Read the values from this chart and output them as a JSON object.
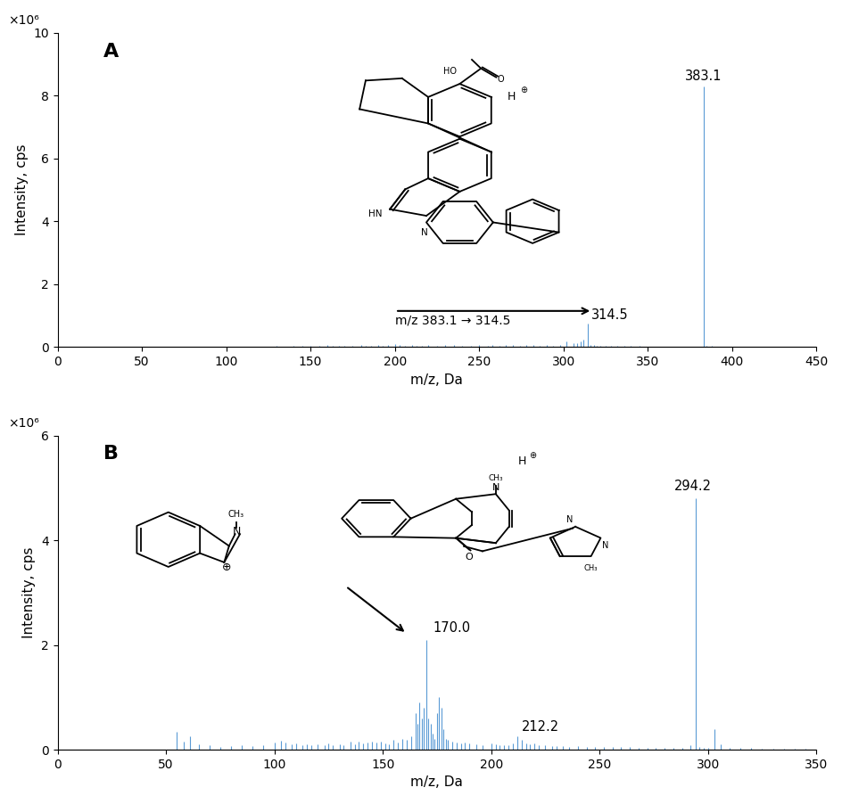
{
  "panel_A": {
    "label": "A",
    "xlim": [
      0,
      450
    ],
    "ylim": [
      0,
      10
    ],
    "yticks": [
      0,
      2,
      4,
      6,
      8,
      10
    ],
    "xticks": [
      0,
      50,
      100,
      150,
      200,
      250,
      300,
      350,
      400,
      450
    ],
    "ylabel": "Intensity, cps",
    "xlabel": "m/z, Da",
    "y_scale_label": "×10⁶",
    "main_peak": {
      "mz": 383.1,
      "intensity": 8.3,
      "label": "383.1"
    },
    "secondary_peak": {
      "mz": 314.5,
      "intensity": 0.75,
      "label": "314.5"
    },
    "transition_label": "m/z 383.1 → 314.5",
    "noise_peaks_A": [
      [
        130,
        0.03
      ],
      [
        140,
        0.04
      ],
      [
        145,
        0.025
      ],
      [
        150,
        0.05
      ],
      [
        155,
        0.03
      ],
      [
        160,
        0.06
      ],
      [
        163,
        0.04
      ],
      [
        167,
        0.035
      ],
      [
        170,
        0.04
      ],
      [
        175,
        0.025
      ],
      [
        180,
        0.08
      ],
      [
        183,
        0.05
      ],
      [
        186,
        0.04
      ],
      [
        190,
        0.07
      ],
      [
        193,
        0.045
      ],
      [
        196,
        0.06
      ],
      [
        200,
        0.09
      ],
      [
        203,
        0.055
      ],
      [
        206,
        0.04
      ],
      [
        210,
        0.07
      ],
      [
        213,
        0.05
      ],
      [
        216,
        0.035
      ],
      [
        220,
        0.06
      ],
      [
        225,
        0.04
      ],
      [
        230,
        0.055
      ],
      [
        235,
        0.065
      ],
      [
        240,
        0.045
      ],
      [
        245,
        0.05
      ],
      [
        250,
        0.06
      ],
      [
        255,
        0.04
      ],
      [
        258,
        0.065
      ],
      [
        262,
        0.045
      ],
      [
        266,
        0.055
      ],
      [
        270,
        0.065
      ],
      [
        274,
        0.05
      ],
      [
        278,
        0.06
      ],
      [
        282,
        0.055
      ],
      [
        286,
        0.05
      ],
      [
        290,
        0.065
      ],
      [
        294,
        0.045
      ],
      [
        298,
        0.055
      ],
      [
        302,
        0.17
      ],
      [
        306,
        0.13
      ],
      [
        308,
        0.12
      ],
      [
        310,
        0.18
      ],
      [
        312,
        0.25
      ],
      [
        314.5,
        0.75
      ],
      [
        316,
        0.06
      ],
      [
        318,
        0.07
      ],
      [
        320,
        0.04
      ],
      [
        322,
        0.05
      ],
      [
        325,
        0.03
      ],
      [
        328,
        0.04
      ],
      [
        332,
        0.03
      ],
      [
        336,
        0.025
      ],
      [
        340,
        0.03
      ],
      [
        345,
        0.025
      ],
      [
        350,
        0.02
      ],
      [
        355,
        0.015
      ],
      [
        360,
        0.01
      ],
      [
        365,
        0.01
      ],
      [
        370,
        0.01
      ],
      [
        375,
        0.01
      ],
      [
        380,
        0.01
      ],
      [
        383.1,
        8.3
      ],
      [
        385,
        0.05
      ],
      [
        388,
        0.025
      ],
      [
        392,
        0.02
      ],
      [
        396,
        0.015
      ],
      [
        400,
        0.01
      ],
      [
        410,
        0.01
      ],
      [
        420,
        0.01
      ],
      [
        430,
        0.008
      ],
      [
        440,
        0.008
      ]
    ],
    "line_color": "#5B9BD5"
  },
  "panel_B": {
    "label": "B",
    "xlim": [
      0,
      350
    ],
    "ylim": [
      0,
      6
    ],
    "yticks": [
      0,
      2,
      4,
      6
    ],
    "xticks": [
      0,
      50,
      100,
      150,
      200,
      250,
      300,
      350
    ],
    "ylabel": "Intensity, cps",
    "xlabel": "m/z, Da",
    "y_scale_label": "×10⁶",
    "main_peak": {
      "mz": 294.2,
      "intensity": 4.8,
      "label": "294.2"
    },
    "peak_170": {
      "mz": 170.0,
      "intensity": 2.1,
      "label": "170.0"
    },
    "peak_212": {
      "mz": 212.2,
      "intensity": 0.25,
      "label": "212.2"
    },
    "noise_peaks_B": [
      [
        55,
        0.35
      ],
      [
        58,
        0.15
      ],
      [
        61,
        0.25
      ],
      [
        65,
        0.1
      ],
      [
        70,
        0.08
      ],
      [
        75,
        0.06
      ],
      [
        80,
        0.07
      ],
      [
        85,
        0.08
      ],
      [
        90,
        0.07
      ],
      [
        95,
        0.09
      ],
      [
        100,
        0.13
      ],
      [
        103,
        0.17
      ],
      [
        105,
        0.13
      ],
      [
        108,
        0.1
      ],
      [
        110,
        0.12
      ],
      [
        113,
        0.09
      ],
      [
        115,
        0.11
      ],
      [
        117,
        0.08
      ],
      [
        120,
        0.1
      ],
      [
        123,
        0.08
      ],
      [
        125,
        0.12
      ],
      [
        127,
        0.09
      ],
      [
        130,
        0.11
      ],
      [
        132,
        0.08
      ],
      [
        135,
        0.15
      ],
      [
        137,
        0.11
      ],
      [
        139,
        0.16
      ],
      [
        141,
        0.12
      ],
      [
        143,
        0.14
      ],
      [
        145,
        0.16
      ],
      [
        147,
        0.13
      ],
      [
        149,
        0.15
      ],
      [
        151,
        0.12
      ],
      [
        153,
        0.1
      ],
      [
        155,
        0.18
      ],
      [
        157,
        0.14
      ],
      [
        159,
        0.2
      ],
      [
        161,
        0.18
      ],
      [
        163,
        0.25
      ],
      [
        165,
        0.7
      ],
      [
        166,
        0.5
      ],
      [
        167,
        0.9
      ],
      [
        168,
        0.6
      ],
      [
        169,
        0.8
      ],
      [
        170.0,
        2.1
      ],
      [
        171,
        0.6
      ],
      [
        172,
        0.5
      ],
      [
        173,
        0.3
      ],
      [
        174,
        0.2
      ],
      [
        175,
        0.7
      ],
      [
        176,
        1.0
      ],
      [
        177,
        0.8
      ],
      [
        178,
        0.4
      ],
      [
        179,
        0.2
      ],
      [
        180,
        0.18
      ],
      [
        182,
        0.15
      ],
      [
        184,
        0.14
      ],
      [
        186,
        0.12
      ],
      [
        188,
        0.14
      ],
      [
        190,
        0.12
      ],
      [
        193,
        0.1
      ],
      [
        196,
        0.09
      ],
      [
        200,
        0.12
      ],
      [
        202,
        0.1
      ],
      [
        204,
        0.08
      ],
      [
        206,
        0.09
      ],
      [
        208,
        0.08
      ],
      [
        210,
        0.12
      ],
      [
        212.2,
        0.25
      ],
      [
        214,
        0.18
      ],
      [
        216,
        0.12
      ],
      [
        218,
        0.1
      ],
      [
        220,
        0.12
      ],
      [
        222,
        0.09
      ],
      [
        225,
        0.08
      ],
      [
        228,
        0.07
      ],
      [
        230,
        0.07
      ],
      [
        233,
        0.07
      ],
      [
        236,
        0.06
      ],
      [
        240,
        0.07
      ],
      [
        244,
        0.06
      ],
      [
        248,
        0.06
      ],
      [
        252,
        0.06
      ],
      [
        256,
        0.05
      ],
      [
        260,
        0.05
      ],
      [
        264,
        0.05
      ],
      [
        268,
        0.04
      ],
      [
        272,
        0.04
      ],
      [
        276,
        0.04
      ],
      [
        280,
        0.04
      ],
      [
        284,
        0.04
      ],
      [
        288,
        0.04
      ],
      [
        292,
        0.08
      ],
      [
        294.2,
        4.8
      ],
      [
        296,
        0.05
      ],
      [
        298,
        0.04
      ],
      [
        300,
        0.04
      ],
      [
        303,
        0.4
      ],
      [
        306,
        0.1
      ],
      [
        310,
        0.04
      ],
      [
        315,
        0.03
      ],
      [
        320,
        0.03
      ],
      [
        325,
        0.02
      ],
      [
        330,
        0.02
      ],
      [
        335,
        0.02
      ],
      [
        340,
        0.02
      ],
      [
        345,
        0.01
      ],
      [
        350,
        0.01
      ]
    ],
    "line_color": "#5B9BD5"
  }
}
